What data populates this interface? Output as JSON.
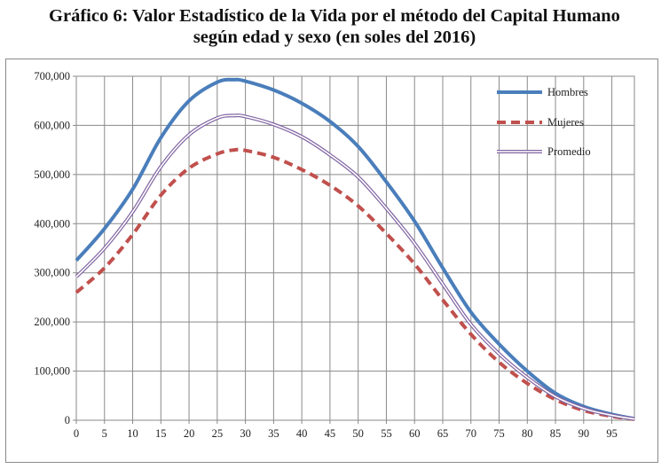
{
  "title": {
    "line1": "Gráfico 6: Valor Estadístico de la Vida por el método del Capital Humano",
    "line2": "según edad y sexo (en soles del 2016)"
  },
  "chart_data": {
    "type": "line",
    "x": [
      0,
      5,
      10,
      15,
      20,
      25,
      28,
      30,
      35,
      40,
      45,
      50,
      55,
      60,
      65,
      70,
      75,
      80,
      85,
      90,
      95,
      99
    ],
    "x_ticks": [
      "0",
      "5",
      "10",
      "15",
      "20",
      "25",
      "30",
      "35",
      "40",
      "45",
      "50",
      "55",
      "60",
      "65",
      "70",
      "75",
      "80",
      "85",
      "90",
      "95"
    ],
    "y_ticks": [
      "0",
      "100,000",
      "200,000",
      "300,000",
      "400,000",
      "500,000",
      "600,000",
      "700,000"
    ],
    "xlim": [
      0,
      99
    ],
    "ylim": [
      0,
      700000
    ],
    "grid": true,
    "legend_position": "top-right",
    "series": [
      {
        "name": "Hombres",
        "color": "#4a7ebb",
        "style": "solid-thick",
        "values": [
          325000,
          390000,
          470000,
          575000,
          650000,
          688000,
          693000,
          690000,
          672000,
          645000,
          608000,
          557000,
          485000,
          405000,
          310000,
          220000,
          155000,
          100000,
          55000,
          28000,
          12000,
          3000
        ]
      },
      {
        "name": "Mujeres",
        "color": "#c0504d",
        "style": "dashed",
        "values": [
          260000,
          310000,
          378000,
          458000,
          513000,
          542000,
          550000,
          549000,
          535000,
          510000,
          478000,
          436000,
          380000,
          318000,
          245000,
          175000,
          118000,
          75000,
          42000,
          20000,
          8000,
          2000
        ]
      },
      {
        "name": "Promedio",
        "color": "#8064a2",
        "style": "double-thin",
        "values": [
          292000,
          350000,
          424000,
          516000,
          581000,
          615000,
          620000,
          618000,
          602000,
          577000,
          540000,
          495000,
          431000,
          360000,
          277000,
          195000,
          135000,
          87000,
          48000,
          24000,
          10000,
          2500
        ]
      }
    ]
  }
}
